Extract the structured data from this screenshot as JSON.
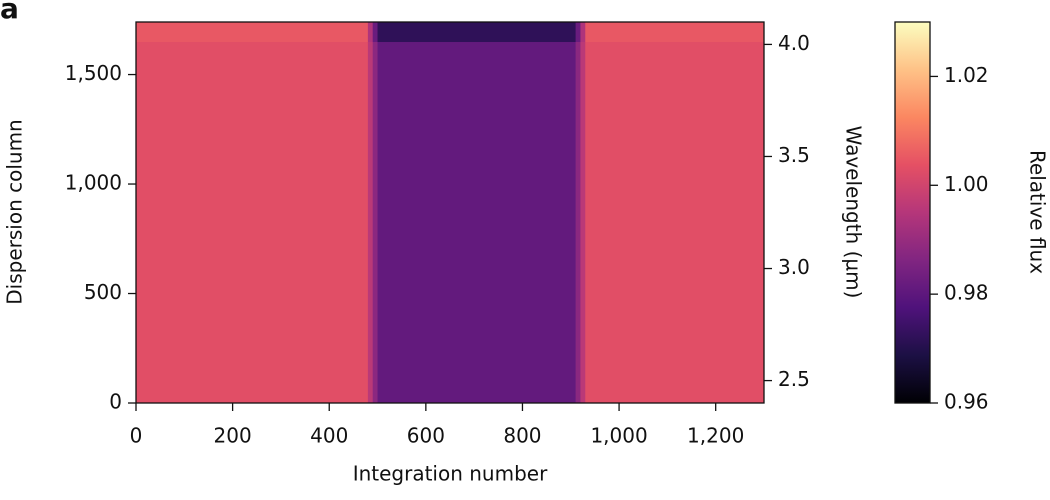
{
  "chart_data": {
    "type": "heatmap",
    "panel_label": "a",
    "xlabel": "Integration number",
    "ylabel": "Dispersion column",
    "y2label": "Wavelength (µm)",
    "colorbar_label": "Relative flux",
    "colormap": "magma",
    "x_bins": [
      0,
      480,
      490,
      500,
      910,
      920,
      930,
      1300
    ],
    "y_bins": [
      0,
      1650,
      1740
    ],
    "values": [
      [
        1.003,
        0.996,
        0.988,
        0.981,
        0.988,
        0.996,
        1.003
      ],
      [
        1.005,
        0.994,
        0.982,
        0.972,
        0.982,
        0.994,
        1.005
      ]
    ],
    "xlim": [
      0,
      1300
    ],
    "xticks": [
      0,
      200,
      400,
      600,
      800,
      {
        "value": 1000,
        "label": "1,000"
      },
      {
        "value": 1200,
        "label": "1,200"
      }
    ],
    "ylim": [
      0,
      1740
    ],
    "yticks": [
      0,
      500,
      {
        "value": 1000,
        "label": "1,000"
      },
      {
        "value": 1500,
        "label": "1,500"
      }
    ],
    "y2lim": [
      2.4,
      4.1
    ],
    "y2ticks": [
      2.5,
      {
        "value": 3,
        "label": "3.0"
      },
      3.5,
      {
        "value": 4,
        "label": "4.0"
      }
    ],
    "clim": [
      0.96,
      1.03
    ],
    "cticks": [
      0.96,
      0.98,
      {
        "value": 1,
        "label": "1.00"
      },
      1.02
    ]
  }
}
